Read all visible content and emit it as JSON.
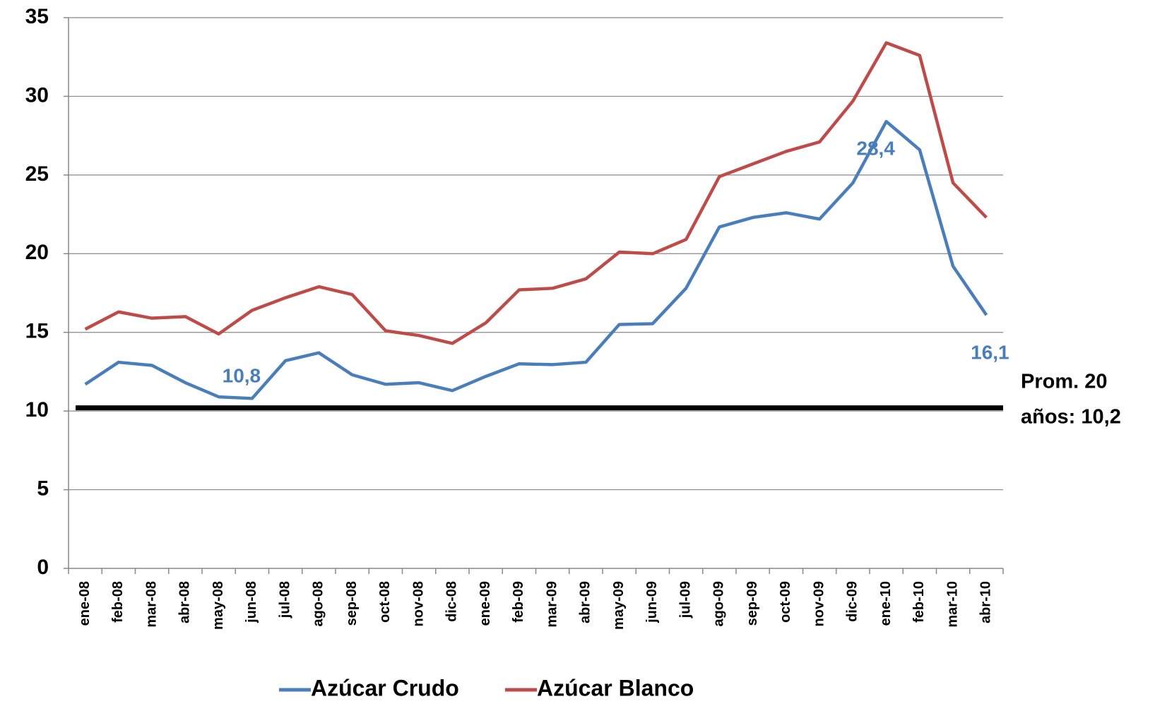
{
  "chart_data": {
    "type": "line",
    "categories": [
      "ene-08",
      "feb-08",
      "mar-08",
      "abr-08",
      "may-08",
      "jun-08",
      "jul-08",
      "ago-08",
      "sep-08",
      "oct-08",
      "nov-08",
      "dic-08",
      "ene-09",
      "feb-09",
      "mar-09",
      "abr-09",
      "may-09",
      "jun-09",
      "jul-09",
      "ago-09",
      "sep-09",
      "oct-09",
      "nov-09",
      "dic-09",
      "ene-10",
      "feb-10",
      "mar-10",
      "abr-10"
    ],
    "series": [
      {
        "name": "Azúcar Crudo",
        "color": "#4a7ebb",
        "values": [
          11.7,
          13.1,
          12.9,
          11.8,
          10.9,
          10.8,
          13.2,
          13.7,
          12.3,
          11.7,
          11.8,
          11.3,
          12.2,
          13.0,
          12.95,
          13.1,
          15.5,
          15.55,
          17.8,
          21.7,
          22.3,
          22.6,
          22.2,
          24.5,
          28.4,
          26.6,
          19.2,
          16.1
        ],
        "value_labels": [
          null,
          null,
          null,
          null,
          null,
          "10,8",
          null,
          null,
          null,
          null,
          null,
          null,
          null,
          null,
          null,
          null,
          null,
          null,
          null,
          null,
          null,
          null,
          null,
          null,
          "28,4",
          null,
          null,
          "16,1"
        ]
      },
      {
        "name": "Azúcar Blanco",
        "color": "#be4b48",
        "values": [
          15.2,
          16.3,
          15.9,
          16.0,
          14.9,
          16.4,
          17.2,
          17.9,
          17.4,
          15.1,
          14.8,
          14.3,
          15.6,
          17.7,
          17.8,
          18.4,
          20.1,
          20.0,
          20.9,
          24.9,
          25.7,
          26.5,
          27.1,
          29.7,
          33.4,
          32.6,
          24.5,
          22.3
        ]
      }
    ],
    "average": {
      "value": 10.2,
      "color": "#000000",
      "label_lines": [
        "Prom. 20",
        "años: 10,2"
      ]
    },
    "ylim": [
      0,
      35
    ],
    "yticks": [
      0,
      5,
      10,
      15,
      20,
      25,
      30,
      35
    ],
    "grid": true,
    "legend": "bottom"
  }
}
